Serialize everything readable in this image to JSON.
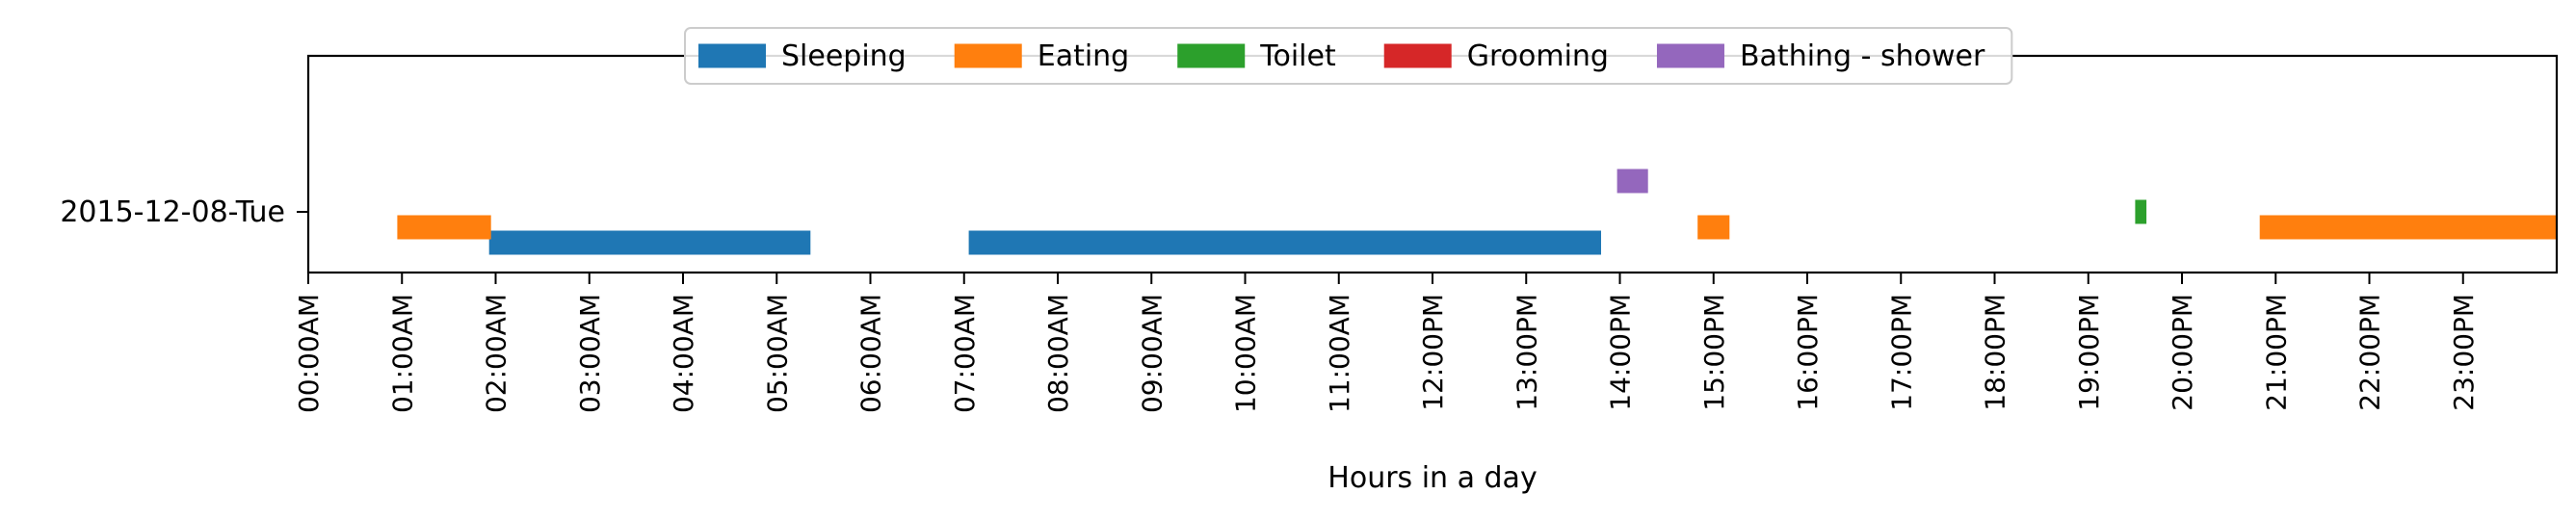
{
  "chart_data": {
    "type": "timeline",
    "title": "",
    "xlabel": "Hours in a day",
    "ylabel": "",
    "xlim": [
      0,
      24
    ],
    "grid": false,
    "legend_position": "top-center",
    "y_categories": [
      "2015-12-08-Tue"
    ],
    "x_ticks": [
      {
        "value": 0,
        "label": "00:00AM"
      },
      {
        "value": 1,
        "label": "01:00AM"
      },
      {
        "value": 2,
        "label": "02:00AM"
      },
      {
        "value": 3,
        "label": "03:00AM"
      },
      {
        "value": 4,
        "label": "04:00AM"
      },
      {
        "value": 5,
        "label": "05:00AM"
      },
      {
        "value": 6,
        "label": "06:00AM"
      },
      {
        "value": 7,
        "label": "07:00AM"
      },
      {
        "value": 8,
        "label": "08:00AM"
      },
      {
        "value": 9,
        "label": "09:00AM"
      },
      {
        "value": 10,
        "label": "10:00AM"
      },
      {
        "value": 11,
        "label": "11:00AM"
      },
      {
        "value": 12,
        "label": "12:00PM"
      },
      {
        "value": 13,
        "label": "13:00PM"
      },
      {
        "value": 14,
        "label": "14:00PM"
      },
      {
        "value": 15,
        "label": "15:00PM"
      },
      {
        "value": 16,
        "label": "16:00PM"
      },
      {
        "value": 17,
        "label": "17:00PM"
      },
      {
        "value": 18,
        "label": "18:00PM"
      },
      {
        "value": 19,
        "label": "19:00PM"
      },
      {
        "value": 20,
        "label": "20:00PM"
      },
      {
        "value": 21,
        "label": "21:00PM"
      },
      {
        "value": 22,
        "label": "22:00PM"
      },
      {
        "value": 23,
        "label": "23:00PM"
      }
    ],
    "series": [
      {
        "name": "Sleeping",
        "color": "#1f77b4",
        "intervals": [
          [
            1.93,
            5.36
          ],
          [
            7.05,
            13.8
          ]
        ]
      },
      {
        "name": "Eating",
        "color": "#ff7f0e",
        "intervals": [
          [
            0.95,
            1.95
          ],
          [
            14.83,
            15.17
          ],
          [
            20.83,
            24.0
          ]
        ]
      },
      {
        "name": "Toilet",
        "color": "#2ca02c",
        "intervals": [
          [
            19.5,
            19.62
          ]
        ]
      },
      {
        "name": "Grooming",
        "color": "#d62728",
        "intervals": []
      },
      {
        "name": "Bathing - shower",
        "color": "#9467bd",
        "intervals": [
          [
            13.97,
            14.3
          ]
        ]
      }
    ]
  }
}
